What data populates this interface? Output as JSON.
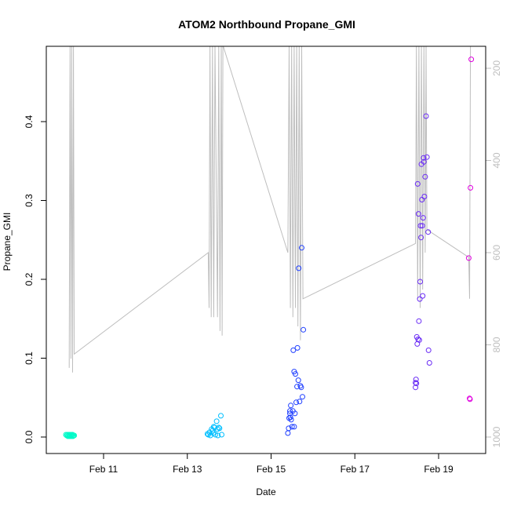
{
  "chart_data": {
    "type": "scatter",
    "title": "ATOM2 Northbound Propane_GMI",
    "xlabel": "Date",
    "ylabel": "Propane_GMI",
    "x_unit": "days (February)",
    "xlim": [
      9.8,
      20.2
    ],
    "ylim": [
      0.0,
      0.5
    ],
    "x_ticks": [
      {
        "value": 11,
        "label": "Feb 11"
      },
      {
        "value": 13,
        "label": "Feb 13"
      },
      {
        "value": 15,
        "label": "Feb 15"
      },
      {
        "value": 17,
        "label": "Feb 17"
      },
      {
        "value": 19,
        "label": "Feb 19"
      }
    ],
    "y_ticks": [
      {
        "value": 0.0,
        "label": "0.0"
      },
      {
        "value": 0.1,
        "label": "0.1"
      },
      {
        "value": 0.2,
        "label": "0.2"
      },
      {
        "value": 0.3,
        "label": "0.3"
      },
      {
        "value": 0.4,
        "label": "0.4"
      }
    ],
    "secondary_axis": {
      "side": "right",
      "reversed": true,
      "color": "#bebebe",
      "ylim": [
        1015,
        150
      ],
      "ticks": [
        {
          "value": 200,
          "label": "200"
        },
        {
          "value": 400,
          "label": "400"
        },
        {
          "value": 600,
          "label": "600"
        },
        {
          "value": 800,
          "label": "800"
        },
        {
          "value": 1000,
          "label": "1000"
        }
      ]
    },
    "pressure_line": {
      "color": "#bebebe",
      "points": [
        [
          10.18,
          850
        ],
        [
          10.2,
          150
        ],
        [
          10.22,
          830
        ],
        [
          10.24,
          150
        ],
        [
          10.26,
          860
        ],
        [
          10.28,
          150
        ],
        [
          10.3,
          820
        ],
        [
          13.5,
          600
        ],
        [
          13.52,
          720
        ],
        [
          13.54,
          150
        ],
        [
          13.57,
          740
        ],
        [
          13.6,
          150
        ],
        [
          13.63,
          740
        ],
        [
          13.66,
          150
        ],
        [
          13.72,
          740
        ],
        [
          13.75,
          150
        ],
        [
          13.78,
          770
        ],
        [
          13.81,
          150
        ],
        [
          13.83,
          780
        ],
        [
          13.85,
          150
        ],
        [
          15.4,
          600
        ],
        [
          15.43,
          150
        ],
        [
          15.46,
          720
        ],
        [
          15.49,
          150
        ],
        [
          15.52,
          740
        ],
        [
          15.55,
          150
        ],
        [
          15.58,
          720
        ],
        [
          15.61,
          150
        ],
        [
          15.64,
          760
        ],
        [
          15.67,
          150
        ],
        [
          15.7,
          790
        ],
        [
          15.73,
          150
        ],
        [
          15.76,
          700
        ],
        [
          18.45,
          580
        ],
        [
          18.47,
          150
        ],
        [
          18.5,
          700
        ],
        [
          18.53,
          150
        ],
        [
          18.56,
          720
        ],
        [
          18.59,
          150
        ],
        [
          18.62,
          680
        ],
        [
          18.65,
          150
        ],
        [
          18.68,
          600
        ],
        [
          18.7,
          150
        ],
        [
          18.72,
          550
        ],
        [
          19.72,
          610
        ],
        [
          19.74,
          700
        ],
        [
          19.76,
          150
        ]
      ]
    },
    "series": [
      {
        "color": "#00fac8",
        "points": [
          [
            10.1,
            0.003
          ],
          [
            10.12,
            0.002
          ],
          [
            10.14,
            0.003
          ],
          [
            10.15,
            0.001
          ],
          [
            10.16,
            0.002
          ],
          [
            10.18,
            0.003
          ],
          [
            10.19,
            0.001
          ],
          [
            10.2,
            0.002
          ],
          [
            10.22,
            0.003
          ],
          [
            10.23,
            0.001
          ],
          [
            10.24,
            0.002
          ],
          [
            10.26,
            0.003
          ],
          [
            10.27,
            0.001
          ],
          [
            10.28,
            0.002
          ],
          [
            10.3,
            0.002
          ]
        ]
      },
      {
        "color": "#00bfff",
        "points": [
          [
            13.48,
            0.004
          ],
          [
            13.5,
            0.003
          ],
          [
            13.53,
            0.006
          ],
          [
            13.55,
            0.002
          ],
          [
            13.58,
            0.01
          ],
          [
            13.6,
            0.008
          ],
          [
            13.62,
            0.005
          ],
          [
            13.63,
            0.013
          ],
          [
            13.65,
            0.012
          ],
          [
            13.67,
            0.003
          ],
          [
            13.7,
            0.02
          ],
          [
            13.72,
            0.01
          ],
          [
            13.73,
            0.002
          ],
          [
            13.75,
            0.012
          ],
          [
            13.77,
            0.011
          ],
          [
            13.8,
            0.027
          ],
          [
            13.82,
            0.003
          ]
        ]
      },
      {
        "color": "#1f3fff",
        "points": [
          [
            15.4,
            0.005
          ],
          [
            15.42,
            0.011
          ],
          [
            15.43,
            0.024
          ],
          [
            15.45,
            0.03
          ],
          [
            15.46,
            0.025
          ],
          [
            15.47,
            0.04
          ],
          [
            15.48,
            0.022
          ],
          [
            15.5,
            0.013
          ],
          [
            15.52,
            0.033
          ],
          [
            15.53,
            0.11
          ],
          [
            15.55,
            0.083
          ],
          [
            15.57,
            0.03
          ],
          [
            15.58,
            0.08
          ],
          [
            15.6,
            0.044
          ],
          [
            15.62,
            0.064
          ],
          [
            15.63,
            0.113
          ],
          [
            15.65,
            0.072
          ],
          [
            15.66,
            0.214
          ],
          [
            15.68,
            0.045
          ],
          [
            15.7,
            0.065
          ],
          [
            15.72,
            0.063
          ],
          [
            15.73,
            0.24
          ],
          [
            15.75,
            0.051
          ],
          [
            15.77,
            0.136
          ],
          [
            15.45,
            0.033
          ],
          [
            15.55,
            0.013
          ]
        ]
      },
      {
        "color": "#6a2cf5",
        "points": [
          [
            18.45,
            0.063
          ],
          [
            18.46,
            0.073
          ],
          [
            18.47,
            0.068
          ],
          [
            18.48,
            0.127
          ],
          [
            18.49,
            0.118
          ],
          [
            18.5,
            0.321
          ],
          [
            18.51,
            0.124
          ],
          [
            18.52,
            0.283
          ],
          [
            18.53,
            0.147
          ],
          [
            18.54,
            0.123
          ],
          [
            18.55,
            0.175
          ],
          [
            18.56,
            0.197
          ],
          [
            18.57,
            0.268
          ],
          [
            18.58,
            0.253
          ],
          [
            18.59,
            0.346
          ],
          [
            18.6,
            0.301
          ],
          [
            18.61,
            0.268
          ],
          [
            18.62,
            0.179
          ],
          [
            18.63,
            0.278
          ],
          [
            18.64,
            0.354
          ],
          [
            18.65,
            0.349
          ],
          [
            18.66,
            0.305
          ],
          [
            18.68,
            0.33
          ],
          [
            18.7,
            0.407
          ],
          [
            18.72,
            0.355
          ],
          [
            18.75,
            0.26
          ],
          [
            18.76,
            0.11
          ],
          [
            18.78,
            0.094
          ],
          [
            18.45,
            0.069
          ]
        ]
      },
      {
        "color": "#e000e0",
        "points": [
          [
            19.72,
            0.227
          ],
          [
            19.74,
            0.049
          ],
          [
            19.75,
            0.048
          ],
          [
            19.76,
            0.316
          ],
          [
            19.78,
            0.479
          ]
        ]
      }
    ]
  }
}
